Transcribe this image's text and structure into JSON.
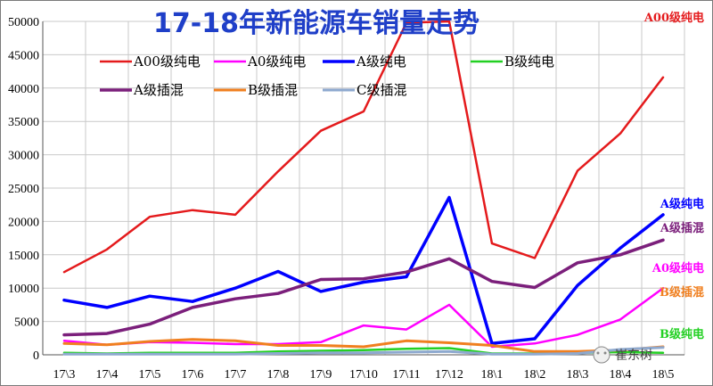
{
  "chart_data": {
    "type": "line",
    "title": "17-18年新能源车销量走势",
    "categories": [
      "17\\3",
      "17\\4",
      "17\\5",
      "17\\6",
      "17\\7",
      "17\\8",
      "17\\9",
      "17\\10",
      "17\\11",
      "17\\12",
      "18\\1",
      "18\\2",
      "18\\3",
      "18\\4",
      "18\\5"
    ],
    "ylim": [
      0,
      50000
    ],
    "yticks": [
      0,
      5000,
      10000,
      15000,
      20000,
      25000,
      30000,
      35000,
      40000,
      45000,
      50000
    ],
    "grid": true,
    "legend_position": "top-left",
    "series": [
      {
        "name": "A00级纯电",
        "color": "#e41a1c",
        "width": 2.5,
        "values": [
          12400,
          15800,
          20700,
          21700,
          21000,
          27500,
          33600,
          36500,
          49800,
          50000,
          16700,
          14500,
          27600,
          33200,
          41600
        ]
      },
      {
        "name": "A0级纯电",
        "color": "#ff00ff",
        "width": 2.5,
        "values": [
          2100,
          1500,
          1900,
          1800,
          1600,
          1600,
          1900,
          4400,
          3800,
          7500,
          1200,
          1700,
          3000,
          5300,
          10000
        ]
      },
      {
        "name": "A级纯电",
        "color": "#0000ff",
        "width": 3.5,
        "values": [
          8200,
          7100,
          8800,
          8000,
          10000,
          12500,
          9500,
          10900,
          11700,
          23600,
          1700,
          2400,
          10400,
          16000,
          21000
        ]
      },
      {
        "name": "B级纯电",
        "color": "#22d022",
        "width": 2.5,
        "values": [
          300,
          200,
          300,
          300,
          300,
          500,
          600,
          700,
          900,
          1000,
          200,
          200,
          300,
          400,
          300
        ]
      },
      {
        "name": "A级插混",
        "color": "#7b1f7b",
        "width": 3.5,
        "values": [
          3000,
          3200,
          4600,
          7100,
          8400,
          9200,
          11300,
          11400,
          12400,
          14400,
          11000,
          10100,
          13800,
          15000,
          17200
        ]
      },
      {
        "name": "B级插混",
        "color": "#f07f1f",
        "width": 3,
        "values": [
          1700,
          1500,
          2000,
          2300,
          2100,
          1400,
          1400,
          1200,
          2100,
          1800,
          1400,
          500,
          500,
          700,
          1200
        ]
      },
      {
        "name": "C级插混",
        "color": "#8ea9cf",
        "width": 3,
        "values": [
          100,
          100,
          100,
          100,
          100,
          200,
          300,
          300,
          400,
          500,
          100,
          100,
          200,
          800,
          1100
        ]
      }
    ],
    "end_labels": [
      {
        "text": "A00级纯电",
        "color": "#e41a1c"
      },
      {
        "text": "A级纯电",
        "color": "#0000ff"
      },
      {
        "text": "A级插混",
        "color": "#7b1f7b"
      },
      {
        "text": "A0级纯电",
        "color": "#ff00ff"
      },
      {
        "text": "B级插混",
        "color": "#f07f1f"
      },
      {
        "text": "B级纯电",
        "color": "#22d022"
      }
    ]
  },
  "watermark": "崔东树"
}
